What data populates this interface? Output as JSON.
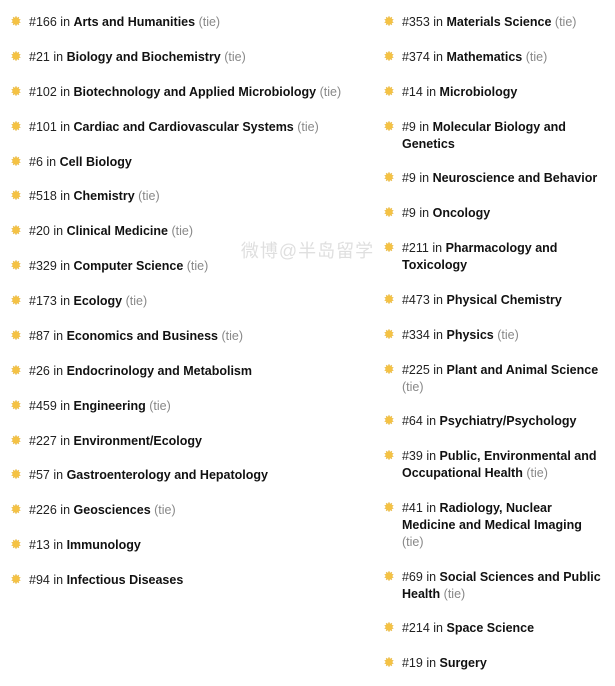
{
  "icon_color": "#f5c243",
  "icon_stroke": "#d9a62e",
  "text_in": "in",
  "tie_label": "(tie)",
  "watermark": "微博@半岛留学",
  "left": [
    {
      "rank": "#166",
      "subject": "Arts and Humanities",
      "tie": true
    },
    {
      "rank": "#21",
      "subject": "Biology and Biochemistry",
      "tie": true
    },
    {
      "rank": "#102",
      "subject": "Biotechnology and Applied Microbiology",
      "tie": true
    },
    {
      "rank": "#101",
      "subject": "Cardiac and Cardiovascular Systems",
      "tie": true
    },
    {
      "rank": "#6",
      "subject": "Cell Biology",
      "tie": false
    },
    {
      "rank": "#518",
      "subject": "Chemistry",
      "tie": true
    },
    {
      "rank": "#20",
      "subject": "Clinical Medicine",
      "tie": true
    },
    {
      "rank": "#329",
      "subject": "Computer Science",
      "tie": true
    },
    {
      "rank": "#173",
      "subject": "Ecology",
      "tie": true
    },
    {
      "rank": "#87",
      "subject": "Economics and Business",
      "tie": true
    },
    {
      "rank": "#26",
      "subject": "Endocrinology and Metabolism",
      "tie": false
    },
    {
      "rank": "#459",
      "subject": "Engineering",
      "tie": true
    },
    {
      "rank": "#227",
      "subject": "Environment/Ecology",
      "tie": false
    },
    {
      "rank": "#57",
      "subject": "Gastroenterology and Hepatology",
      "tie": false
    },
    {
      "rank": "#226",
      "subject": "Geosciences",
      "tie": true
    },
    {
      "rank": "#13",
      "subject": "Immunology",
      "tie": false
    },
    {
      "rank": "#94",
      "subject": "Infectious Diseases",
      "tie": false
    }
  ],
  "right": [
    {
      "rank": "#353",
      "subject": "Materials Science",
      "tie": true
    },
    {
      "rank": "#374",
      "subject": "Mathematics",
      "tie": true
    },
    {
      "rank": "#14",
      "subject": "Microbiology",
      "tie": false
    },
    {
      "rank": "#9",
      "subject": "Molecular Biology and Genetics",
      "tie": false
    },
    {
      "rank": "#9",
      "subject": "Neuroscience and Behavior",
      "tie": false
    },
    {
      "rank": "#9",
      "subject": "Oncology",
      "tie": false
    },
    {
      "rank": "#211",
      "subject": "Pharmacology and Toxicology",
      "tie": false
    },
    {
      "rank": "#473",
      "subject": "Physical Chemistry",
      "tie": false
    },
    {
      "rank": "#334",
      "subject": "Physics",
      "tie": true
    },
    {
      "rank": "#225",
      "subject": "Plant and Animal Science",
      "tie": true
    },
    {
      "rank": "#64",
      "subject": "Psychiatry/Psychology",
      "tie": false
    },
    {
      "rank": "#39",
      "subject": "Public, Environmental and Occupational Health",
      "tie": true
    },
    {
      "rank": "#41",
      "subject": "Radiology, Nuclear Medicine and Medical Imaging",
      "tie": true
    },
    {
      "rank": "#69",
      "subject": "Social Sciences and Public Health",
      "tie": true
    },
    {
      "rank": "#214",
      "subject": "Space Science",
      "tie": false
    },
    {
      "rank": "#19",
      "subject": "Surgery",
      "tie": false
    }
  ]
}
